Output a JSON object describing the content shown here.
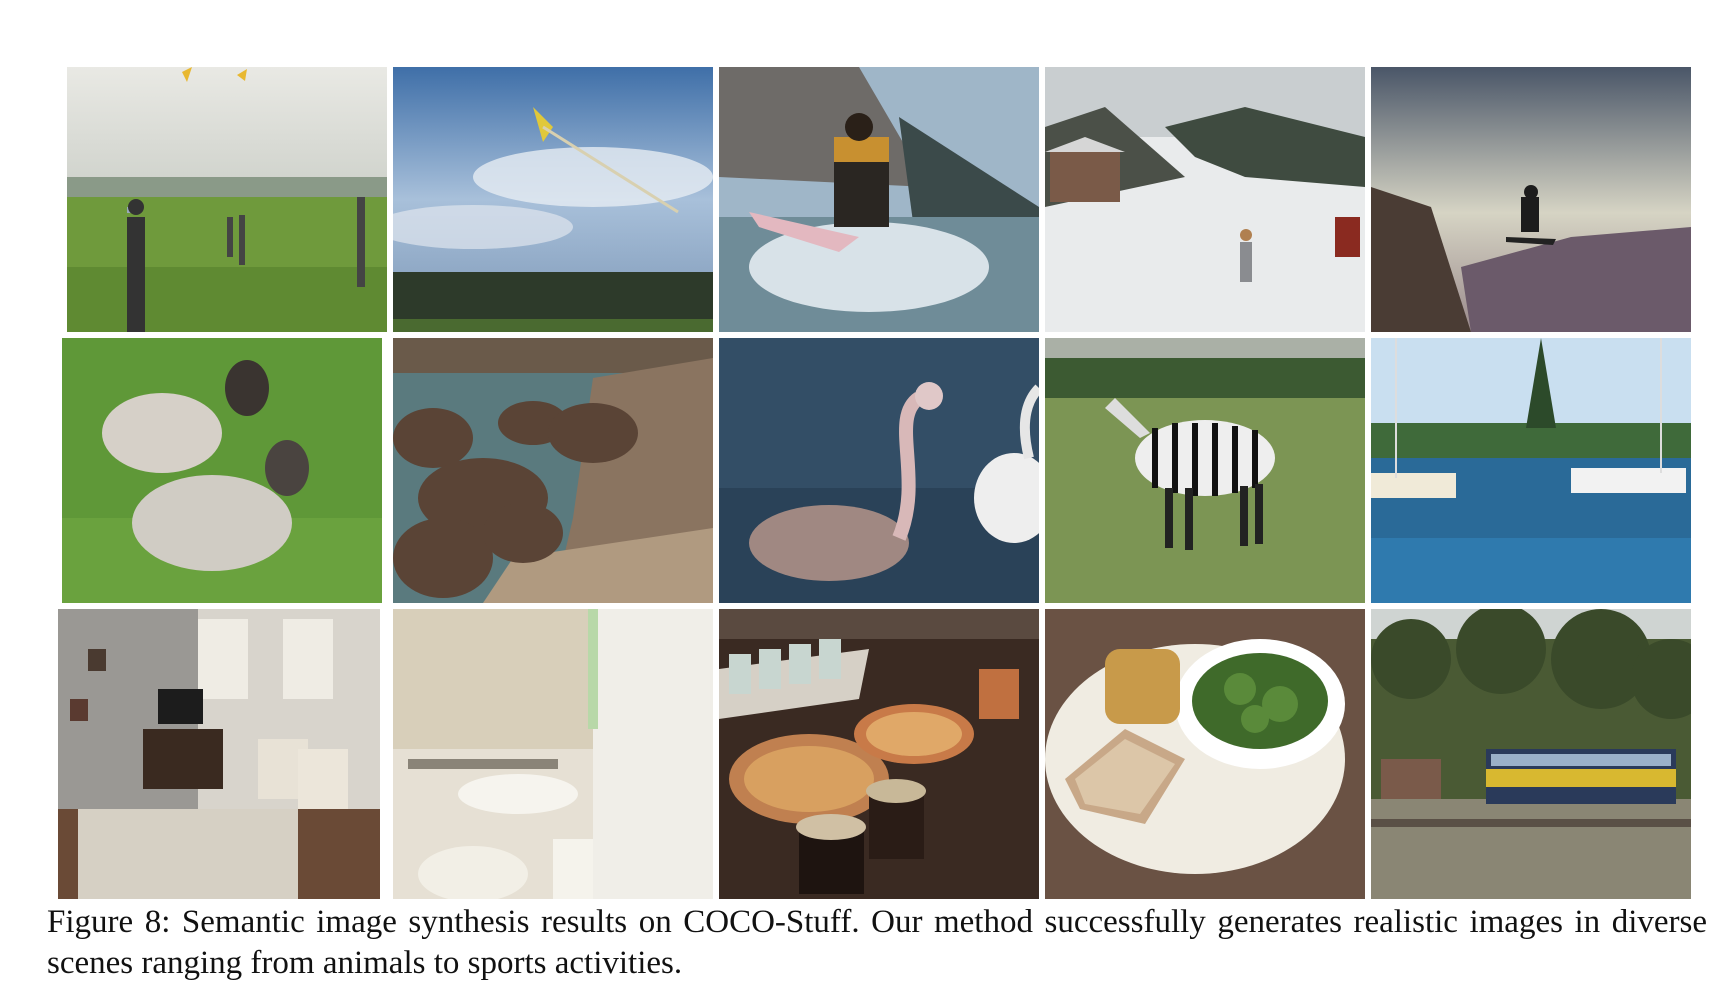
{
  "figure": {
    "caption_line_1": "Figure 8: Semantic image synthesis results on COCO-Stuff. Our method successfully generates realistic images in diverse",
    "caption_line_2": "scenes ranging from animals to sports activities."
  },
  "panels": [
    {
      "row": 1,
      "col": 1,
      "subject": "people flying kites in a grass field"
    },
    {
      "row": 1,
      "col": 2,
      "subject": "kite in a cloudy blue sky above trees"
    },
    {
      "row": 1,
      "col": 3,
      "subject": "surfer riding a wave"
    },
    {
      "row": 1,
      "col": 4,
      "subject": "skier on a snowy slope near cabins"
    },
    {
      "row": 1,
      "col": 5,
      "subject": "snowboarder jumping over a canyon"
    },
    {
      "row": 2,
      "col": 1,
      "subject": "two sheep lying in grass"
    },
    {
      "row": 2,
      "col": 2,
      "subject": "herd of elephants at a river"
    },
    {
      "row": 2,
      "col": 3,
      "subject": "flamingos in water"
    },
    {
      "row": 2,
      "col": 4,
      "subject": "zebra standing in a meadow"
    },
    {
      "row": 2,
      "col": 5,
      "subject": "sailboats in a blue harbor"
    },
    {
      "row": 3,
      "col": 1,
      "subject": "living room with sofa and television"
    },
    {
      "row": 3,
      "col": 2,
      "subject": "bathroom with sink and toilet"
    },
    {
      "row": 3,
      "col": 3,
      "subject": "pizzas and glasses on a table"
    },
    {
      "row": 3,
      "col": 4,
      "subject": "plate with bread and broccoli bowl"
    },
    {
      "row": 3,
      "col": 5,
      "subject": "yellow train passing a station"
    }
  ]
}
